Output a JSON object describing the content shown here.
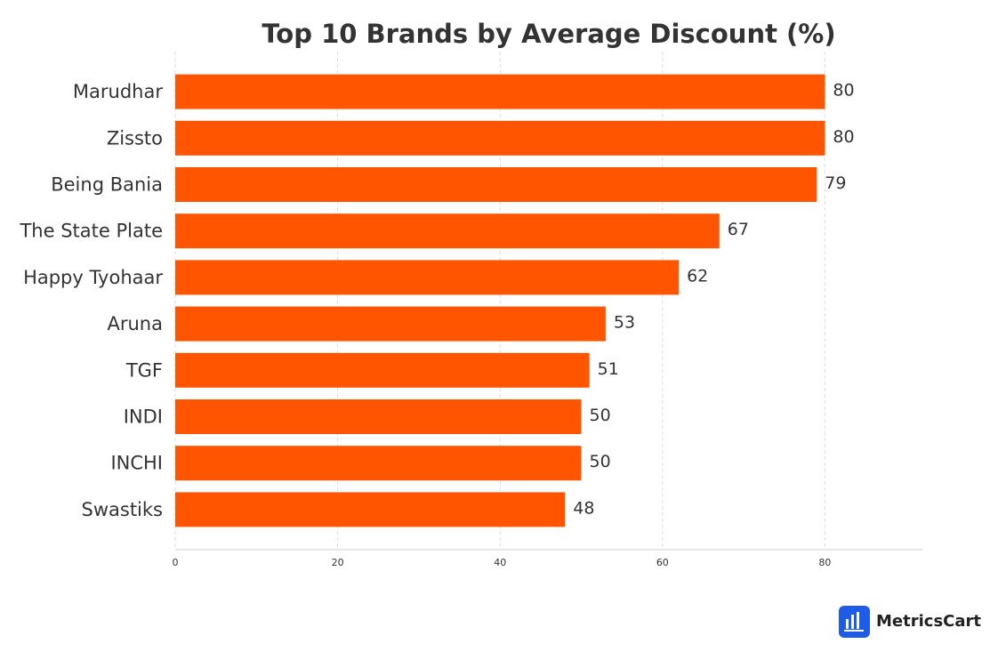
{
  "chart_data": {
    "type": "bar",
    "orientation": "horizontal",
    "title": "Top 10 Brands by Average Discount (%)",
    "categories": [
      "Marudhar",
      "Zissto",
      "Being Bania",
      "The State Plate",
      "Happy Tyohaar",
      "Aruna",
      "TGF",
      "INDI",
      "INCHI",
      "Swastiks"
    ],
    "values": [
      80,
      80,
      79,
      67,
      62,
      53,
      51,
      50,
      50,
      48
    ],
    "color": "#ff5500",
    "xlim": [
      0,
      92
    ],
    "xticks": [
      0,
      20,
      40,
      60,
      80
    ],
    "grid": true
  },
  "logo": {
    "text": "MetricsCart"
  }
}
